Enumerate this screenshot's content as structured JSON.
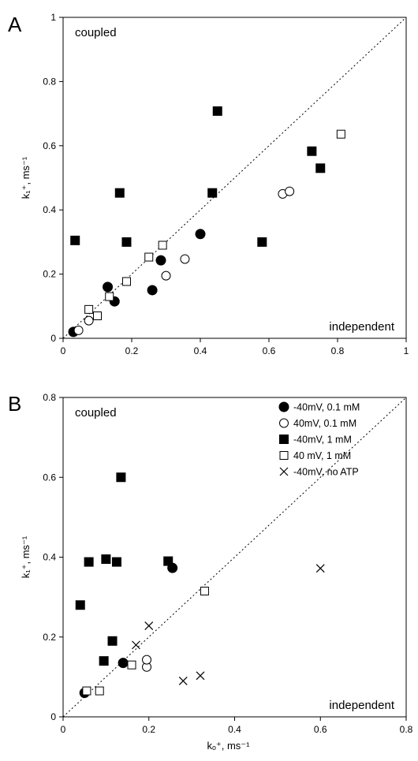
{
  "chart_data": [
    {
      "type": "scatter",
      "panel": "A",
      "xlim": [
        0,
        1
      ],
      "ylim": [
        0,
        1
      ],
      "xticks": [
        "0",
        "0.2",
        "0.4",
        "0.6",
        "0.8",
        "1"
      ],
      "yticks": [
        "0",
        "0.2",
        "0.4",
        "0.6",
        "0.8",
        "1"
      ],
      "xlabel": "",
      "ylabel": "k₁⁺, ms⁻¹",
      "annotations": {
        "upper_left": "coupled",
        "lower_right": "independent"
      },
      "identity_line": true,
      "series": [
        {
          "marker": "filled-circle",
          "points": [
            [
              0.03,
              0.02
            ],
            [
              0.13,
              0.16
            ],
            [
              0.15,
              0.115
            ],
            [
              0.26,
              0.15
            ],
            [
              0.285,
              0.243
            ],
            [
              0.4,
              0.325
            ]
          ]
        },
        {
          "marker": "open-circle",
          "points": [
            [
              0.045,
              0.025
            ],
            [
              0.075,
              0.055
            ],
            [
              0.3,
              0.195
            ],
            [
              0.355,
              0.247
            ],
            [
              0.64,
              0.45
            ],
            [
              0.66,
              0.458
            ]
          ]
        },
        {
          "marker": "filled-square",
          "points": [
            [
              0.035,
              0.305
            ],
            [
              0.165,
              0.453
            ],
            [
              0.185,
              0.3
            ],
            [
              0.435,
              0.453
            ],
            [
              0.45,
              0.708
            ],
            [
              0.58,
              0.3
            ],
            [
              0.725,
              0.583
            ],
            [
              0.75,
              0.53
            ]
          ]
        },
        {
          "marker": "open-square",
          "points": [
            [
              0.075,
              0.09
            ],
            [
              0.1,
              0.07
            ],
            [
              0.135,
              0.13
            ],
            [
              0.185,
              0.177
            ],
            [
              0.25,
              0.253
            ],
            [
              0.29,
              0.29
            ],
            [
              0.81,
              0.636
            ]
          ]
        }
      ]
    },
    {
      "type": "scatter",
      "panel": "B",
      "xlim": [
        0,
        0.8
      ],
      "ylim": [
        0,
        0.8
      ],
      "xticks": [
        "0",
        "0.2",
        "0.4",
        "0.6",
        "0.8"
      ],
      "yticks": [
        "0",
        "0.2",
        "0.4",
        "0.6",
        "0.8"
      ],
      "xlabel": "kₒ⁺, ms⁻¹",
      "ylabel": "k₁⁺, ms⁻¹",
      "annotations": {
        "upper_left": "coupled",
        "lower_right": "independent"
      },
      "identity_line": true,
      "legend": "top-right",
      "series": [
        {
          "name": "-40mV, 0.1 mM",
          "marker": "filled-circle",
          "points": [
            [
              0.05,
              0.06
            ],
            [
              0.14,
              0.135
            ],
            [
              0.255,
              0.373
            ]
          ]
        },
        {
          "name": "40mV, 0.1 mM",
          "marker": "open-circle",
          "points": [
            [
              0.195,
              0.125
            ],
            [
              0.195,
              0.143
            ]
          ]
        },
        {
          "name": "-40mV, 1 mM",
          "marker": "filled-square",
          "points": [
            [
              0.04,
              0.28
            ],
            [
              0.06,
              0.388
            ],
            [
              0.095,
              0.14
            ],
            [
              0.1,
              0.395
            ],
            [
              0.115,
              0.19
            ],
            [
              0.125,
              0.388
            ],
            [
              0.135,
              0.6
            ],
            [
              0.245,
              0.39
            ]
          ]
        },
        {
          "name": "40 mV, 1 mM",
          "marker": "open-square",
          "points": [
            [
              0.055,
              0.065
            ],
            [
              0.085,
              0.065
            ],
            [
              0.16,
              0.13
            ],
            [
              0.33,
              0.315
            ]
          ]
        },
        {
          "name": "-40mV, no ATP",
          "marker": "cross",
          "points": [
            [
              0.17,
              0.18
            ],
            [
              0.2,
              0.228
            ],
            [
              0.28,
              0.09
            ],
            [
              0.32,
              0.103
            ],
            [
              0.6,
              0.372
            ]
          ]
        }
      ]
    }
  ]
}
